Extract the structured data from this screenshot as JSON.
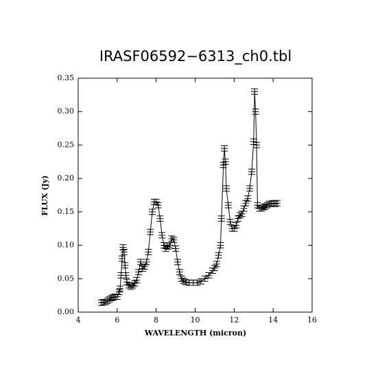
{
  "chart_data": {
    "type": "errorbar-line",
    "title": "IRASF06592−6313_ch0.tbl",
    "xlabel": "WAVELENGTH (micron)",
    "ylabel": "FLUX (Jy)",
    "x": [
      5.2,
      5.3,
      5.4,
      5.5,
      5.6,
      5.7,
      5.8,
      5.9,
      6.0,
      6.1,
      6.15,
      6.2,
      6.25,
      6.3,
      6.35,
      6.4,
      6.45,
      6.5,
      6.6,
      6.7,
      6.8,
      6.9,
      7.0,
      7.1,
      7.2,
      7.3,
      7.4,
      7.5,
      7.6,
      7.7,
      7.8,
      7.9,
      8.0,
      8.1,
      8.2,
      8.3,
      8.4,
      8.5,
      8.6,
      8.7,
      8.8,
      8.9,
      9.0,
      9.1,
      9.2,
      9.3,
      9.4,
      9.5,
      9.7,
      9.9,
      10.1,
      10.3,
      10.5,
      10.7,
      10.9,
      11.0,
      11.1,
      11.2,
      11.3,
      11.35,
      11.45,
      11.5,
      11.55,
      11.6,
      11.7,
      11.8,
      11.9,
      12.0,
      12.1,
      12.2,
      12.3,
      12.4,
      12.5,
      12.6,
      12.7,
      12.8,
      12.9,
      13.0,
      13.05,
      13.1,
      13.15,
      13.2,
      13.3,
      13.4,
      13.5,
      13.6,
      13.7,
      13.8,
      13.9,
      14.0,
      14.1,
      14.2
    ],
    "values": [
      0.014,
      0.015,
      0.015,
      0.017,
      0.019,
      0.021,
      0.022,
      0.023,
      0.023,
      0.03,
      0.035,
      0.055,
      0.08,
      0.097,
      0.09,
      0.07,
      0.055,
      0.045,
      0.04,
      0.038,
      0.04,
      0.043,
      0.048,
      0.06,
      0.075,
      0.065,
      0.068,
      0.075,
      0.09,
      0.12,
      0.15,
      0.165,
      0.165,
      0.16,
      0.14,
      0.115,
      0.1,
      0.095,
      0.098,
      0.1,
      0.11,
      0.108,
      0.095,
      0.075,
      0.06,
      0.05,
      0.047,
      0.045,
      0.044,
      0.044,
      0.044,
      0.046,
      0.05,
      0.055,
      0.062,
      0.066,
      0.072,
      0.085,
      0.1,
      0.14,
      0.22,
      0.245,
      0.225,
      0.185,
      0.16,
      0.135,
      0.125,
      0.125,
      0.13,
      0.14,
      0.145,
      0.147,
      0.155,
      0.163,
      0.17,
      0.185,
      0.21,
      0.255,
      0.33,
      0.3,
      0.25,
      0.16,
      0.155,
      0.155,
      0.157,
      0.158,
      0.16,
      0.162,
      0.162,
      0.163,
      0.162,
      0.163
    ],
    "errors": [
      0.004,
      0.004,
      0.004,
      0.004,
      0.004,
      0.004,
      0.004,
      0.004,
      0.004,
      0.004,
      0.004,
      0.004,
      0.004,
      0.004,
      0.004,
      0.004,
      0.004,
      0.004,
      0.004,
      0.004,
      0.004,
      0.004,
      0.004,
      0.004,
      0.004,
      0.004,
      0.004,
      0.004,
      0.004,
      0.004,
      0.004,
      0.004,
      0.004,
      0.004,
      0.004,
      0.004,
      0.004,
      0.004,
      0.004,
      0.004,
      0.004,
      0.004,
      0.004,
      0.004,
      0.004,
      0.004,
      0.004,
      0.004,
      0.004,
      0.004,
      0.004,
      0.004,
      0.004,
      0.004,
      0.004,
      0.004,
      0.004,
      0.004,
      0.004,
      0.004,
      0.004,
      0.004,
      0.004,
      0.004,
      0.004,
      0.004,
      0.004,
      0.004,
      0.004,
      0.004,
      0.004,
      0.004,
      0.004,
      0.004,
      0.004,
      0.004,
      0.004,
      0.004,
      0.004,
      0.004,
      0.004,
      0.004,
      0.004,
      0.004,
      0.004,
      0.004,
      0.004,
      0.004,
      0.004,
      0.004,
      0.004,
      0.004
    ],
    "color": "#000000",
    "xlim": [
      4,
      16
    ],
    "xticks": [
      4,
      6,
      8,
      10,
      12,
      14,
      16
    ],
    "ylim": [
      0,
      0.35
    ],
    "yticks": [
      {
        "value": 0,
        "label": "0.00"
      },
      {
        "value": 0.05,
        "label": "0.05"
      },
      {
        "value": 0.1,
        "label": "0.10"
      },
      {
        "value": 0.15,
        "label": "0.15"
      },
      {
        "value": 0.2,
        "label": "0.20"
      },
      {
        "value": 0.25,
        "label": "0.25"
      },
      {
        "value": 0.3,
        "label": "0.30"
      },
      {
        "value": 0.35,
        "label": "0.35"
      }
    ]
  }
}
